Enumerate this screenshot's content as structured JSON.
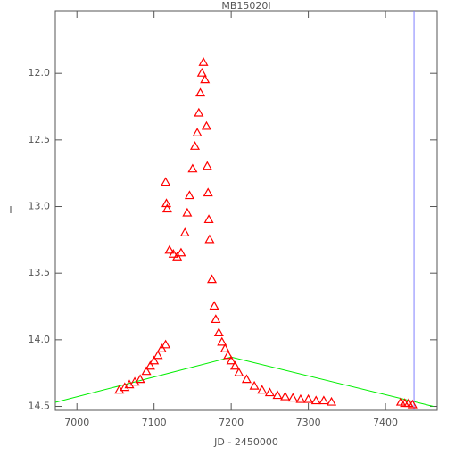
{
  "chart_data": {
    "type": "scatter",
    "title": "MB15020I",
    "x_label": "JD - 2450000",
    "y_label": "I",
    "xlim": [
      6972,
      7467
    ],
    "ylim": [
      14.53,
      11.53
    ],
    "xticks": [
      7000,
      7100,
      7200,
      7300,
      7400
    ],
    "yticks": [
      {
        "value": 12,
        "label": "12.0"
      },
      {
        "value": 12.5,
        "label": "12.5"
      },
      {
        "value": 13,
        "label": "13.0"
      },
      {
        "value": 13.5,
        "label": "13.5"
      },
      {
        "value": 14,
        "label": "14.0"
      },
      {
        "value": 14.5,
        "label": "14.5"
      }
    ],
    "grid": false,
    "series": [
      {
        "color": "#ff0000",
        "x": [
          7055,
          7062,
          7068,
          7075,
          7082,
          7090,
          7095,
          7100,
          7105,
          7110,
          7115,
          7115,
          7116,
          7117,
          7120,
          7125,
          7130,
          7135,
          7140,
          7143,
          7146,
          7150,
          7153,
          7156,
          7158,
          7160,
          7162,
          7164,
          7166,
          7168,
          7169,
          7170,
          7171,
          7172,
          7175,
          7178,
          7180,
          7184,
          7188,
          7192,
          7196,
          7200,
          7205,
          7210,
          7220,
          7230,
          7240,
          7250,
          7260,
          7270,
          7280,
          7290,
          7300,
          7310,
          7320,
          7330,
          7420,
          7425,
          7430,
          7435
        ],
        "values": [
          14.38,
          14.36,
          14.34,
          14.32,
          14.3,
          14.24,
          14.2,
          14.16,
          14.12,
          14.07,
          14.04,
          12.82,
          12.98,
          13.02,
          13.33,
          13.36,
          13.38,
          13.35,
          13.2,
          13.05,
          12.92,
          12.72,
          12.55,
          12.45,
          12.3,
          12.15,
          12.0,
          11.92,
          12.05,
          12.4,
          12.7,
          12.9,
          13.1,
          13.25,
          13.55,
          13.75,
          13.85,
          13.95,
          14.02,
          14.07,
          14.12,
          14.16,
          14.2,
          14.25,
          14.3,
          14.35,
          14.38,
          14.4,
          14.42,
          14.43,
          14.44,
          14.45,
          14.45,
          14.46,
          14.46,
          14.47,
          14.47,
          14.48,
          14.48,
          14.49
        ]
      }
    ],
    "lines": [
      {
        "color": "#00ee00",
        "x": [
          6972,
          7200,
          7462
        ],
        "values": [
          14.47,
          14.13,
          14.5
        ]
      }
    ],
    "vlines": [
      {
        "color": "#8080ff",
        "x": 7437
      }
    ]
  }
}
